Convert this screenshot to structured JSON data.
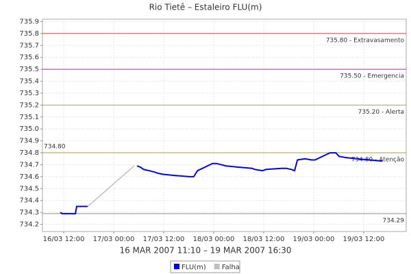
{
  "chart_data": {
    "type": "line",
    "title": "Rio Tietê – Estaleiro FLU(m)",
    "subtitle": "16 MAR 2007 11:10 – 19 MAR 2007 16:30",
    "xlim": [
      6.9,
      94.2
    ],
    "xticks": [
      {
        "value": 12,
        "label": "16/03 12:00"
      },
      {
        "value": 24,
        "label": "17/03 00:00"
      },
      {
        "value": 36,
        "label": "17/03 12:00"
      },
      {
        "value": 48,
        "label": "18/03 00:00"
      },
      {
        "value": 60,
        "label": "18/03 12:00"
      },
      {
        "value": 72,
        "label": "19/03 00:00"
      },
      {
        "value": 84,
        "label": "19/03 12:00"
      }
    ],
    "ylim": [
      734.14,
      735.92
    ],
    "yticks": [
      734.2,
      734.3,
      734.4,
      734.5,
      734.6,
      734.7,
      734.8,
      734.9,
      {
        "value": 735,
        "label": "735.0"
      },
      735.1,
      735.2,
      735.3,
      735.4,
      735.5,
      735.6,
      735.7,
      735.8,
      735.9
    ],
    "grid": true,
    "series": [
      {
        "name": "FLU(m)",
        "color": "#0000ff",
        "x": [
          11.17,
          11.67,
          14.8,
          15.1,
          17.75,
          28.9,
          29.6,
          30.4,
          31.2,
          32.5,
          33.7,
          34.5,
          35.7,
          38.6,
          42.1,
          43.2,
          44.1,
          47.7,
          48.7,
          51.0,
          53.9,
          57.2,
          57.9,
          59.7,
          60.5,
          64.3,
          65.4,
          66.7,
          67.4,
          68.1,
          69.9,
          71.5,
          72.3,
          75.9,
          77.3,
          78.1,
          79.7,
          82.2,
          85.5,
          88.5
        ],
        "values": [
          734.3,
          734.29,
          734.29,
          734.35,
          734.35,
          null,
          734.69,
          734.68,
          734.66,
          734.65,
          734.64,
          734.63,
          734.62,
          734.61,
          734.6,
          734.6,
          734.65,
          734.71,
          734.71,
          734.69,
          734.68,
          734.67,
          734.66,
          734.65,
          734.66,
          734.67,
          734.67,
          734.66,
          734.65,
          734.74,
          734.75,
          734.74,
          734.74,
          734.8,
          734.8,
          734.77,
          734.76,
          734.75,
          734.74,
          734.73
        ]
      },
      {
        "name": "Falha",
        "color": "#c0c0c0",
        "x": [
          17.75,
          28.9
        ],
        "values": [
          734.35,
          734.69
        ]
      }
    ],
    "markers": [
      {
        "value": 735.8,
        "label": "735.80 - Extravasamento",
        "color": "#d04040"
      },
      {
        "value": 735.5,
        "label": "735.50 - Emergencia",
        "color": "#c020c0"
      },
      {
        "value": 735.2,
        "label": "735.20 - Alerta",
        "color": "#c8a020"
      },
      {
        "value": 734.8,
        "label": "734.80 - Atenção",
        "left_label": "734.80",
        "color": "#a0a040"
      },
      {
        "value": 734.29,
        "label": "734.29",
        "color": "#909090"
      }
    ]
  }
}
